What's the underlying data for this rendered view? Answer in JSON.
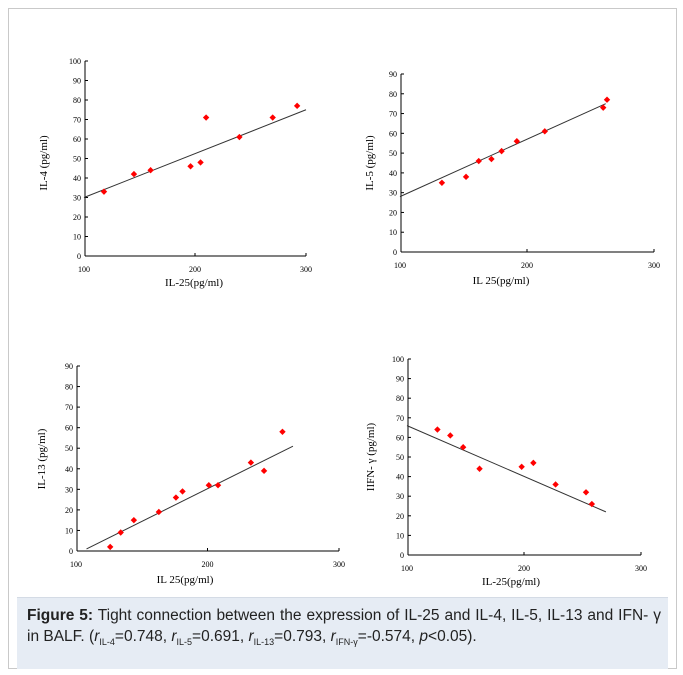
{
  "chart_data": [
    {
      "type": "scatter",
      "id": "il4",
      "xlabel": "IL-25(pg/ml)",
      "ylabel": "IL-4 (pg/ml)",
      "xlim": [
        100,
        300
      ],
      "ylim": [
        0,
        100
      ],
      "xticks": [
        100,
        200,
        300
      ],
      "yticks": [
        0,
        10,
        20,
        30,
        40,
        50,
        60,
        70,
        80,
        90,
        100
      ],
      "points": [
        [
          118,
          33
        ],
        [
          145,
          42
        ],
        [
          160,
          44
        ],
        [
          196,
          46
        ],
        [
          205,
          48
        ],
        [
          210,
          71
        ],
        [
          240,
          61
        ],
        [
          270,
          71
        ],
        [
          292,
          77
        ]
      ],
      "fit_line": [
        [
          100,
          30
        ],
        [
          300,
          75
        ]
      ],
      "point_color": "#ff0000",
      "line_color": "#333333",
      "grid": false
    },
    {
      "type": "scatter",
      "id": "il5",
      "xlabel": "IL 25(pg/ml)",
      "ylabel": "IL-5 (pg/ml)",
      "xlim": [
        100,
        300
      ],
      "ylim": [
        0,
        90
      ],
      "xticks": [
        100,
        200,
        300
      ],
      "yticks": [
        0,
        10,
        20,
        30,
        40,
        50,
        60,
        70,
        80,
        90
      ],
      "points": [
        [
          133,
          35
        ],
        [
          152,
          38
        ],
        [
          162,
          46
        ],
        [
          172,
          47
        ],
        [
          180,
          51
        ],
        [
          192,
          56
        ],
        [
          214,
          61
        ],
        [
          260,
          73
        ],
        [
          263,
          77
        ]
      ],
      "fit_line": [
        [
          100,
          28
        ],
        [
          262,
          75
        ]
      ],
      "point_color": "#ff0000",
      "line_color": "#333333",
      "grid": false
    },
    {
      "type": "scatter",
      "id": "il13",
      "xlabel": "IL 25(pg/ml)",
      "ylabel": "IL-13 (pg/ml)",
      "xlim": [
        100,
        300
      ],
      "ylim": [
        0,
        90
      ],
      "xticks": [
        100,
        200,
        300
      ],
      "yticks": [
        0,
        10,
        20,
        30,
        40,
        50,
        60,
        70,
        80,
        90
      ],
      "points": [
        [
          126,
          2
        ],
        [
          134,
          9
        ],
        [
          144,
          15
        ],
        [
          163,
          19
        ],
        [
          176,
          26
        ],
        [
          181,
          29
        ],
        [
          201,
          32
        ],
        [
          208,
          32
        ],
        [
          233,
          43
        ],
        [
          243,
          39
        ],
        [
          257,
          58
        ]
      ],
      "fit_line": [
        [
          108,
          1
        ],
        [
          265,
          51
        ]
      ],
      "point_color": "#ff0000",
      "line_color": "#333333",
      "grid": false
    },
    {
      "type": "scatter",
      "id": "ifn",
      "xlabel": "IL-25(pg/ml)",
      "ylabel": "IIFN- γ (pg/ml)",
      "xlim": [
        100,
        300
      ],
      "ylim": [
        0,
        100
      ],
      "xticks": [
        100,
        200,
        300
      ],
      "yticks": [
        0,
        10,
        20,
        30,
        40,
        50,
        60,
        70,
        80,
        90,
        100
      ],
      "points": [
        [
          126,
          64
        ],
        [
          137,
          61
        ],
        [
          148,
          55
        ],
        [
          162,
          44
        ],
        [
          198,
          45
        ],
        [
          208,
          47
        ],
        [
          227,
          36
        ],
        [
          253,
          32
        ],
        [
          258,
          26
        ]
      ],
      "fit_line": [
        [
          100,
          66
        ],
        [
          270,
          22
        ]
      ],
      "point_color": "#ff0000",
      "line_color": "#333333",
      "grid": false
    }
  ],
  "caption": {
    "label": "Figure 5:",
    "text_main": " Tight connection between the expression of IL-25 and IL-4, IL-5, IL-13 and IFN- γ in BALF. (",
    "r1_sym": "r",
    "r1_sub": "IL-4",
    "r1_val": "=0.748, ",
    "r2_sym": "r",
    "r2_sub": "IL-5",
    "r2_val": "=0.691, ",
    "r3_sym": "r",
    "r3_sub": "IL-13",
    "r3_val": "=0.793, ",
    "r4_sym": "r",
    "r4_sub": "IFN-γ",
    "r4_val": "=-0.574, ",
    "p_sym": "p",
    "p_val": "<0.05)."
  }
}
